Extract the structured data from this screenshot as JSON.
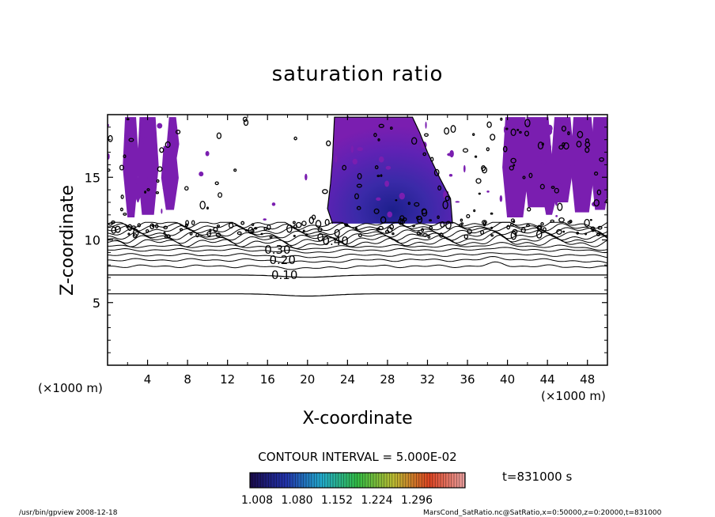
{
  "chart_data": {
    "type": "heatmap",
    "title": "saturation ratio",
    "xlabel": "X-coordinate",
    "ylabel": "Z-coordinate",
    "x_unit_left": "(×1000 m)",
    "x_unit_right": "(×1000 m)",
    "xlim": [
      0,
      50
    ],
    "ylim": [
      0,
      20
    ],
    "x_ticks": [
      4,
      8,
      12,
      16,
      20,
      24,
      28,
      32,
      36,
      40,
      44,
      48
    ],
    "y_ticks": [
      5,
      10,
      15
    ],
    "contour_interval_label": "CONTOUR INTERVAL = 5.000E-02",
    "contour_interval": 0.05,
    "time_label": "t=831000 s",
    "contour_labels": [
      {
        "text": "0.10",
        "x": 17.7,
        "z": 7.2
      },
      {
        "text": "0.20",
        "x": 17.5,
        "z": 8.4
      },
      {
        "text": "0.30",
        "x": 17.0,
        "z": 9.2
      },
      {
        "text": "0.40",
        "x": 22.8,
        "z": 9.9
      }
    ],
    "color_bar": {
      "min": 1.008,
      "max": 1.296,
      "tick_labels": [
        "1.008",
        "1.080",
        "1.152",
        "1.224",
        "1.296"
      ],
      "colors": [
        "#1a0a4a",
        "#2233aa",
        "#22aacc",
        "#33bb44",
        "#bbbb33",
        "#dd4422",
        "#e8a0a0"
      ]
    },
    "shaded_regions": [
      {
        "name": "supersaturated column",
        "x_range": [
          22.5,
          34.5
        ],
        "z_range": [
          11.3,
          19.8
        ],
        "max_value": 1.15
      },
      {
        "name": "left plumes",
        "x_range": [
          2,
          8
        ],
        "z_range": [
          11.5,
          19.8
        ]
      },
      {
        "name": "right plumes",
        "x_range": [
          39.5,
          50
        ],
        "z_range": [
          11.5,
          19.8
        ]
      }
    ]
  },
  "footer": {
    "left": "/usr/bin/gpview   2008-12-18",
    "right": "MarsCond_SatRatio.nc@SatRatio,x=0:50000,z=0:20000,t=831000"
  },
  "colors": {
    "purple": "#7a1eb0",
    "deep_blue": "#22249a"
  }
}
